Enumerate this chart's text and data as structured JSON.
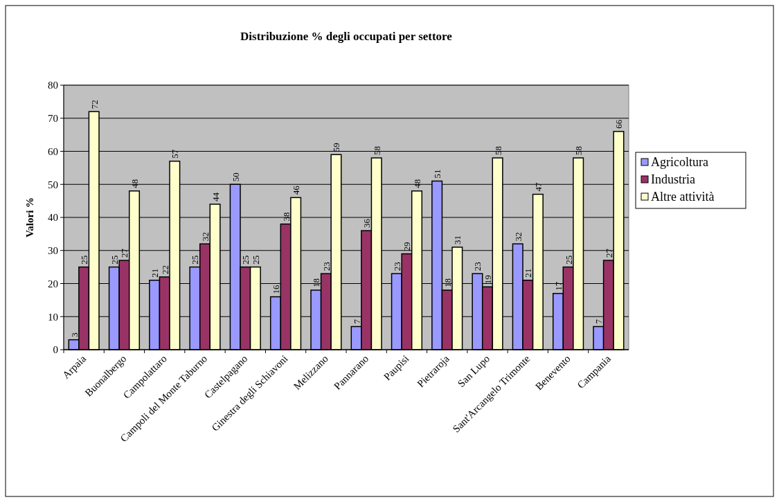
{
  "chart_data": {
    "type": "bar",
    "title": "Distribuzione % degli occupati per settore",
    "ylabel": "Valori %",
    "categories": [
      "Arpaia",
      "Buonalbergo",
      "Campolattaro",
      "Campoli del Monte Taburno",
      "Castelpagano",
      "Ginestra degli Schiavoni",
      "Melizzano",
      "Pannarano",
      "Paupisi",
      "Pietraroja",
      "San Lupo",
      "Sant'Arcangelo Trimonte",
      "Benevento",
      "Campania"
    ],
    "series": [
      {
        "name": "Agricoltura",
        "color": "#9999ff",
        "values": [
          3,
          25,
          21,
          25,
          50,
          16,
          18,
          7,
          23,
          51,
          23,
          32,
          17,
          7
        ]
      },
      {
        "name": "Industria",
        "color": "#993366",
        "values": [
          25,
          27,
          22,
          32,
          25,
          38,
          23,
          36,
          29,
          18,
          19,
          21,
          25,
          27
        ]
      },
      {
        "name": "Altre attività",
        "color": "#ffffcc",
        "values": [
          72,
          48,
          57,
          44,
          25,
          46,
          59,
          58,
          48,
          31,
          58,
          47,
          58,
          66
        ]
      }
    ],
    "ylim": [
      0,
      80
    ],
    "yticks": [
      0,
      10,
      20,
      30,
      40,
      50,
      60,
      70,
      80
    ],
    "grid": "y",
    "legend": "right",
    "data_labels": true
  }
}
